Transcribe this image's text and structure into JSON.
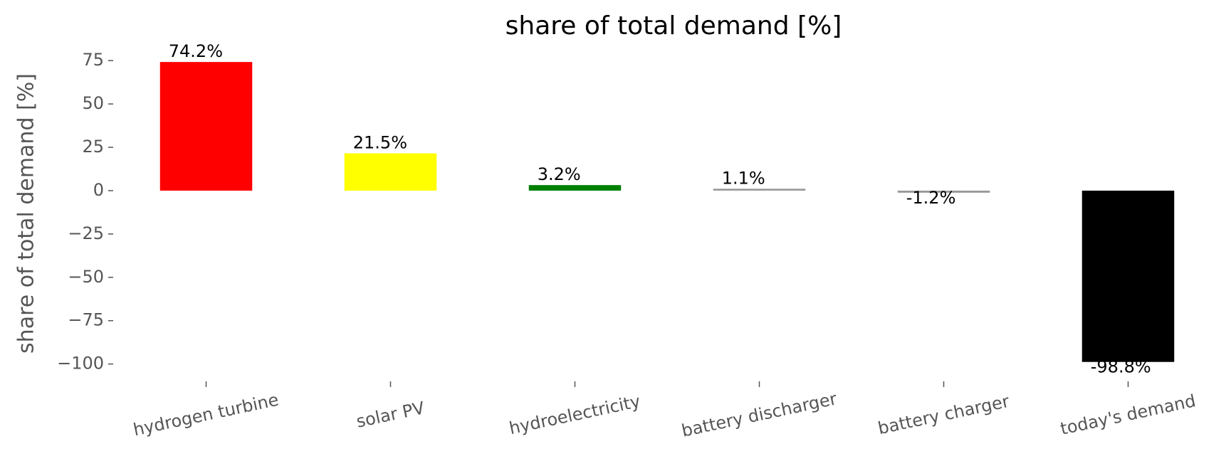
{
  "chart_data": {
    "type": "bar",
    "title": "share of total demand [%]",
    "ylabel": "share of total demand [%]",
    "categories": [
      "hydrogen turbine",
      "solar PV",
      "hydroelectricity",
      "battery discharger",
      "battery charger",
      "today's demand"
    ],
    "values": [
      74.2,
      21.5,
      3.2,
      1.1,
      -1.2,
      -98.8
    ],
    "value_labels": [
      "74.2%",
      "21.5%",
      "3.2%",
      "1.1%",
      "-1.2%",
      "-98.8%"
    ],
    "colors": [
      "#ff0000",
      "#ffff00",
      "#008000",
      "#999999",
      "#999999",
      "#000000"
    ],
    "ylim": [
      -110,
      80
    ],
    "yticks": [
      75,
      50,
      25,
      0,
      {
        "value": -25,
        "label": "−25"
      },
      {
        "value": -50,
        "label": "−50"
      },
      {
        "value": -75,
        "label": "−75"
      },
      {
        "value": -100,
        "label": "−100"
      }
    ],
    "grid": false
  }
}
